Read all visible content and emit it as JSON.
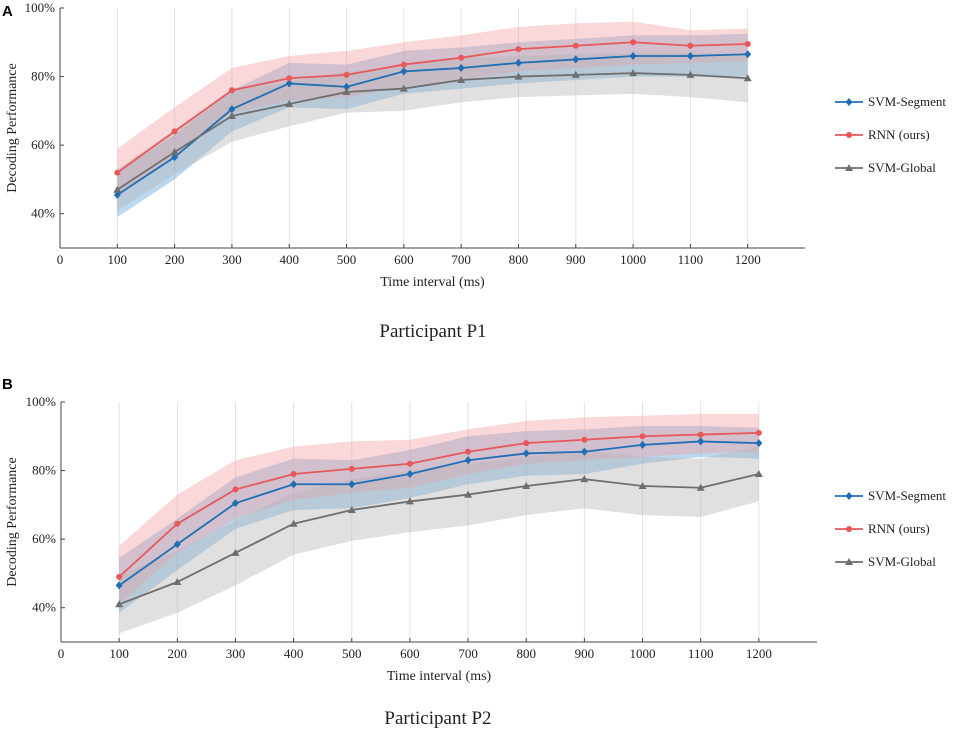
{
  "chart_data": [
    {
      "type": "line",
      "panel_label": "A",
      "caption": "Participant P1",
      "xlabel": "Time interval (ms)",
      "ylabel": "Decoding Performance",
      "xlim": [
        0,
        1300
      ],
      "ylim": [
        30,
        100
      ],
      "x_ticks": [
        0,
        100,
        200,
        300,
        400,
        500,
        600,
        700,
        800,
        900,
        1000,
        1100,
        1200
      ],
      "y_ticks": [
        40,
        60,
        80,
        100
      ],
      "y_tick_labels": [
        "40%",
        "60%",
        "80%",
        "100%"
      ],
      "grid": "vertical",
      "legend_position": "right",
      "x": [
        100,
        200,
        300,
        400,
        500,
        600,
        700,
        800,
        900,
        1000,
        1100,
        1200
      ],
      "series": [
        {
          "name": "SVM-Segment",
          "color": "#1f6fb4",
          "band_color": "#5ba3d9",
          "marker": "diamond",
          "values": [
            45.5,
            56.5,
            70.5,
            78,
            77,
            81.5,
            82.5,
            84,
            85,
            86,
            86,
            86.5
          ],
          "lower": [
            39,
            50,
            64,
            71,
            70.5,
            75,
            76.5,
            78,
            79,
            80,
            80,
            80
          ],
          "upper": [
            52,
            63,
            76,
            84,
            83.5,
            87.5,
            88.5,
            90,
            91,
            92,
            92,
            92.5
          ]
        },
        {
          "name": "RNN (ours)",
          "color": "#e8575a",
          "band_color": "#f4a0a2",
          "marker": "circle",
          "values": [
            52,
            64,
            76,
            79.5,
            80.5,
            83.5,
            85.5,
            88,
            89,
            90,
            89,
            89.5
          ],
          "lower": [
            45,
            57,
            69.5,
            73,
            74,
            77,
            79,
            81.5,
            82.5,
            83.5,
            84,
            84.5
          ],
          "upper": [
            59,
            71,
            82.5,
            86,
            87.5,
            90,
            92,
            94.5,
            95.5,
            96,
            93.5,
            94
          ]
        },
        {
          "name": "SVM-Global",
          "color": "#6e6e6e",
          "band_color": "#b4b4b4",
          "marker": "triangle",
          "values": [
            47,
            58,
            68.5,
            72,
            75.5,
            76.5,
            79,
            80,
            80.5,
            81,
            80.5,
            79.5
          ],
          "lower": [
            41,
            51.5,
            61,
            65.5,
            69.5,
            70,
            72.5,
            74,
            74.5,
            75,
            74,
            72.5
          ],
          "upper": [
            53,
            64.5,
            76,
            78.5,
            81.5,
            83,
            85.5,
            86,
            86.5,
            87,
            87,
            86.5
          ]
        }
      ]
    },
    {
      "type": "line",
      "panel_label": "B",
      "caption": "Participant P2",
      "xlabel": "Time interval (ms)",
      "ylabel": "Decoding Performance",
      "xlim": [
        0,
        1300
      ],
      "ylim": [
        30,
        100
      ],
      "x_ticks": [
        0,
        100,
        200,
        300,
        400,
        500,
        600,
        700,
        800,
        900,
        1000,
        1100,
        1200
      ],
      "y_ticks": [
        40,
        60,
        80,
        100
      ],
      "y_tick_labels": [
        "40%",
        "60%",
        "80%",
        "100%"
      ],
      "grid": "vertical",
      "legend_position": "right",
      "x": [
        100,
        200,
        300,
        400,
        500,
        600,
        700,
        800,
        900,
        1000,
        1100,
        1200
      ],
      "series": [
        {
          "name": "SVM-Segment",
          "color": "#1f6fb4",
          "band_color": "#5ba3d9",
          "marker": "diamond",
          "values": [
            46.5,
            58.5,
            70.5,
            76,
            76,
            79,
            83,
            85,
            85.5,
            87.5,
            88.5,
            88
          ],
          "lower": [
            38.5,
            51,
            63,
            68.5,
            69,
            72,
            76,
            78.5,
            79,
            82,
            84,
            83.5
          ],
          "upper": [
            54.5,
            66,
            78,
            83.5,
            83,
            86,
            90,
            91.5,
            92,
            93,
            93,
            92.5
          ]
        },
        {
          "name": "RNN (ours)",
          "color": "#e8575a",
          "band_color": "#f4a0a2",
          "marker": "circle",
          "values": [
            49,
            64.5,
            74.5,
            79,
            80.5,
            82,
            85.5,
            88,
            89,
            90,
            90.5,
            91
          ],
          "lower": [
            41,
            56,
            66,
            71.5,
            73.5,
            75,
            79,
            82,
            83,
            84,
            85,
            85.5
          ],
          "upper": [
            58,
            73,
            83,
            87,
            88.5,
            89,
            92,
            94.5,
            95.5,
            96,
            96.5,
            96.5
          ]
        },
        {
          "name": "SVM-Global",
          "color": "#6e6e6e",
          "band_color": "#b4b4b4",
          "marker": "triangle",
          "values": [
            41,
            47.5,
            56,
            64.5,
            68.5,
            71,
            73,
            75.5,
            77.5,
            75.5,
            75,
            79
          ],
          "lower": [
            32.5,
            38.5,
            46.5,
            55.5,
            59.5,
            62,
            64,
            67,
            69,
            67,
            66.5,
            71
          ],
          "upper": [
            49.5,
            56.5,
            65.5,
            73.5,
            77.5,
            80,
            82,
            84,
            86,
            84,
            83.5,
            87
          ]
        }
      ]
    }
  ]
}
